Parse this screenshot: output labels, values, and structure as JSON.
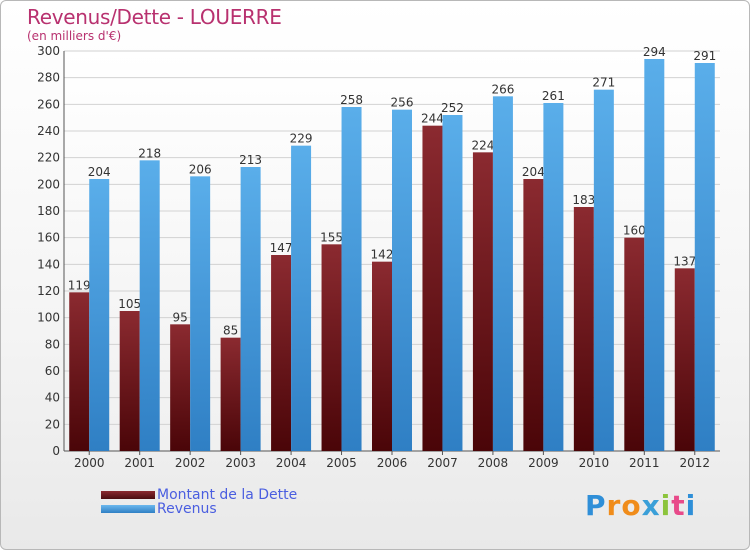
{
  "title": "Revenus/Dette - LOUERRE",
  "subtitle": "(en milliers d'€)",
  "logo": {
    "letters": [
      "P",
      "r",
      "o",
      "x",
      "i",
      "t",
      "i"
    ],
    "colors": [
      "#2f8fd8",
      "#f08c1a",
      "#f08c1a",
      "#3a9fd8",
      "#8cc43c",
      "#e84a8a",
      "#2f8fd8"
    ]
  },
  "chart_data": {
    "type": "bar",
    "categories": [
      "2000",
      "2001",
      "2002",
      "2003",
      "2004",
      "2005",
      "2006",
      "2007",
      "2008",
      "2009",
      "2010",
      "2011",
      "2012"
    ],
    "series": [
      {
        "name": "Montant de la Dette",
        "color": "#7a1f24",
        "values": [
          119,
          105,
          95,
          85,
          147,
          155,
          142,
          244,
          224,
          204,
          183,
          160,
          137
        ]
      },
      {
        "name": "Revenus",
        "color": "#4fa6e6",
        "values": [
          204,
          218,
          206,
          213,
          229,
          258,
          256,
          252,
          266,
          261,
          271,
          294,
          291
        ]
      }
    ],
    "ylim": [
      0,
      300
    ],
    "ytick_step": 20,
    "yticks": [
      "0",
      "20",
      "40",
      "60",
      "80",
      "100",
      "120",
      "140",
      "160",
      "180",
      "200",
      "220",
      "240",
      "260",
      "280",
      "300"
    ],
    "grid": true,
    "legend": "bottom-left"
  }
}
